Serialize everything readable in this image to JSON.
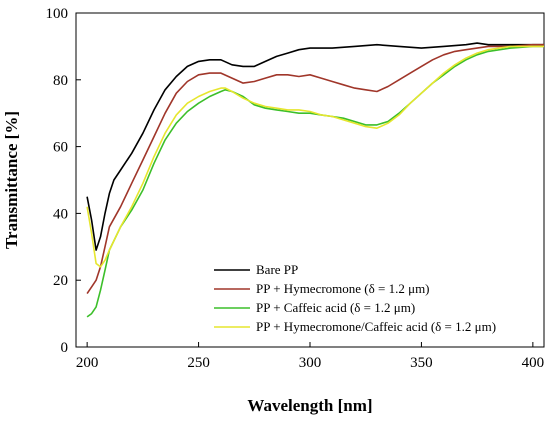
{
  "chart_data": {
    "type": "line",
    "title": "",
    "xlabel": "Wavelength [nm]",
    "ylabel": "Transmittance [%]",
    "xlim": [
      195,
      405
    ],
    "ylim": [
      0,
      100
    ],
    "xticks": [
      200,
      250,
      300,
      350,
      400
    ],
    "yticks": [
      0,
      20,
      40,
      60,
      80,
      100
    ],
    "grid": false,
    "legend_position": "bottom-right",
    "series": [
      {
        "name": "Bare PP",
        "color": "#000000",
        "points": [
          [
            200,
            45
          ],
          [
            202,
            38
          ],
          [
            204,
            29
          ],
          [
            206,
            33
          ],
          [
            208,
            40
          ],
          [
            210,
            46
          ],
          [
            212,
            50
          ],
          [
            215,
            53
          ],
          [
            220,
            58
          ],
          [
            225,
            64
          ],
          [
            230,
            71
          ],
          [
            235,
            77
          ],
          [
            240,
            81
          ],
          [
            245,
            84
          ],
          [
            250,
            85.5
          ],
          [
            255,
            86
          ],
          [
            260,
            86
          ],
          [
            265,
            84.5
          ],
          [
            270,
            84
          ],
          [
            275,
            84
          ],
          [
            280,
            85.5
          ],
          [
            285,
            87
          ],
          [
            290,
            88
          ],
          [
            295,
            89
          ],
          [
            300,
            89.5
          ],
          [
            310,
            89.5
          ],
          [
            320,
            90
          ],
          [
            330,
            90.5
          ],
          [
            340,
            90
          ],
          [
            350,
            89.5
          ],
          [
            360,
            90
          ],
          [
            370,
            90.5
          ],
          [
            375,
            91
          ],
          [
            380,
            90.5
          ],
          [
            390,
            90.5
          ],
          [
            400,
            90.5
          ],
          [
            405,
            90.5
          ]
        ]
      },
      {
        "name": "PP + Hymecromone (δ = 1.2 μm)",
        "color": "#a0362a",
        "points": [
          [
            200,
            16
          ],
          [
            202,
            18
          ],
          [
            204,
            20
          ],
          [
            206,
            24
          ],
          [
            208,
            30
          ],
          [
            210,
            36
          ],
          [
            215,
            42
          ],
          [
            220,
            49
          ],
          [
            225,
            56
          ],
          [
            230,
            63
          ],
          [
            235,
            70
          ],
          [
            240,
            76
          ],
          [
            245,
            79.5
          ],
          [
            250,
            81.5
          ],
          [
            255,
            82
          ],
          [
            260,
            82
          ],
          [
            265,
            80.5
          ],
          [
            270,
            79
          ],
          [
            275,
            79.5
          ],
          [
            280,
            80.5
          ],
          [
            285,
            81.5
          ],
          [
            290,
            81.5
          ],
          [
            295,
            81
          ],
          [
            300,
            81.5
          ],
          [
            305,
            80.5
          ],
          [
            310,
            79.5
          ],
          [
            315,
            78.5
          ],
          [
            320,
            77.5
          ],
          [
            325,
            77
          ],
          [
            330,
            76.5
          ],
          [
            335,
            78
          ],
          [
            340,
            80
          ],
          [
            345,
            82
          ],
          [
            350,
            84
          ],
          [
            355,
            86
          ],
          [
            360,
            87.5
          ],
          [
            365,
            88.5
          ],
          [
            370,
            89
          ],
          [
            375,
            89.5
          ],
          [
            380,
            90
          ],
          [
            390,
            90
          ],
          [
            400,
            90.5
          ],
          [
            405,
            90.5
          ]
        ]
      },
      {
        "name": "PP + Caffeic acid (δ = 1.2 μm)",
        "color": "#3cbf2a",
        "points": [
          [
            200,
            9
          ],
          [
            202,
            10
          ],
          [
            204,
            12
          ],
          [
            206,
            17
          ],
          [
            208,
            23
          ],
          [
            210,
            29
          ],
          [
            215,
            36
          ],
          [
            220,
            41
          ],
          [
            225,
            47
          ],
          [
            230,
            55
          ],
          [
            235,
            62
          ],
          [
            240,
            67
          ],
          [
            245,
            70.5
          ],
          [
            250,
            73
          ],
          [
            255,
            75
          ],
          [
            260,
            76.5
          ],
          [
            262,
            77
          ],
          [
            265,
            76.5
          ],
          [
            270,
            75
          ],
          [
            275,
            72.5
          ],
          [
            280,
            71.5
          ],
          [
            285,
            71
          ],
          [
            290,
            70.5
          ],
          [
            295,
            70
          ],
          [
            300,
            70
          ],
          [
            305,
            69.5
          ],
          [
            310,
            69
          ],
          [
            315,
            68.5
          ],
          [
            320,
            67.5
          ],
          [
            325,
            66.5
          ],
          [
            330,
            66.5
          ],
          [
            335,
            67.5
          ],
          [
            340,
            70
          ],
          [
            345,
            73
          ],
          [
            350,
            76
          ],
          [
            355,
            79
          ],
          [
            360,
            81.5
          ],
          [
            365,
            84
          ],
          [
            370,
            86
          ],
          [
            375,
            87.5
          ],
          [
            380,
            88.5
          ],
          [
            390,
            89.5
          ],
          [
            400,
            90
          ],
          [
            405,
            90
          ]
        ]
      },
      {
        "name": "PP + Hymecromone/Caffeic acid (δ = 1.2 μm)",
        "color": "#e6e62e",
        "points": [
          [
            200,
            42
          ],
          [
            202,
            34
          ],
          [
            204,
            25
          ],
          [
            206,
            24
          ],
          [
            208,
            26
          ],
          [
            210,
            29
          ],
          [
            215,
            36
          ],
          [
            220,
            42
          ],
          [
            225,
            49
          ],
          [
            230,
            57
          ],
          [
            235,
            64
          ],
          [
            240,
            69.5
          ],
          [
            245,
            73
          ],
          [
            250,
            75
          ],
          [
            255,
            76.5
          ],
          [
            260,
            77.5
          ],
          [
            262,
            77.5
          ],
          [
            265,
            76.5
          ],
          [
            270,
            74.5
          ],
          [
            275,
            73
          ],
          [
            280,
            72
          ],
          [
            285,
            71.5
          ],
          [
            290,
            71
          ],
          [
            295,
            71
          ],
          [
            300,
            70.5
          ],
          [
            305,
            69.5
          ],
          [
            310,
            69
          ],
          [
            315,
            68
          ],
          [
            320,
            67
          ],
          [
            325,
            66
          ],
          [
            330,
            65.5
          ],
          [
            335,
            67
          ],
          [
            340,
            69.5
          ],
          [
            345,
            73
          ],
          [
            350,
            76
          ],
          [
            355,
            79
          ],
          [
            360,
            82
          ],
          [
            365,
            84.5
          ],
          [
            370,
            86.5
          ],
          [
            375,
            88
          ],
          [
            380,
            89
          ],
          [
            390,
            90
          ],
          [
            400,
            90
          ],
          [
            405,
            90
          ]
        ]
      }
    ]
  }
}
